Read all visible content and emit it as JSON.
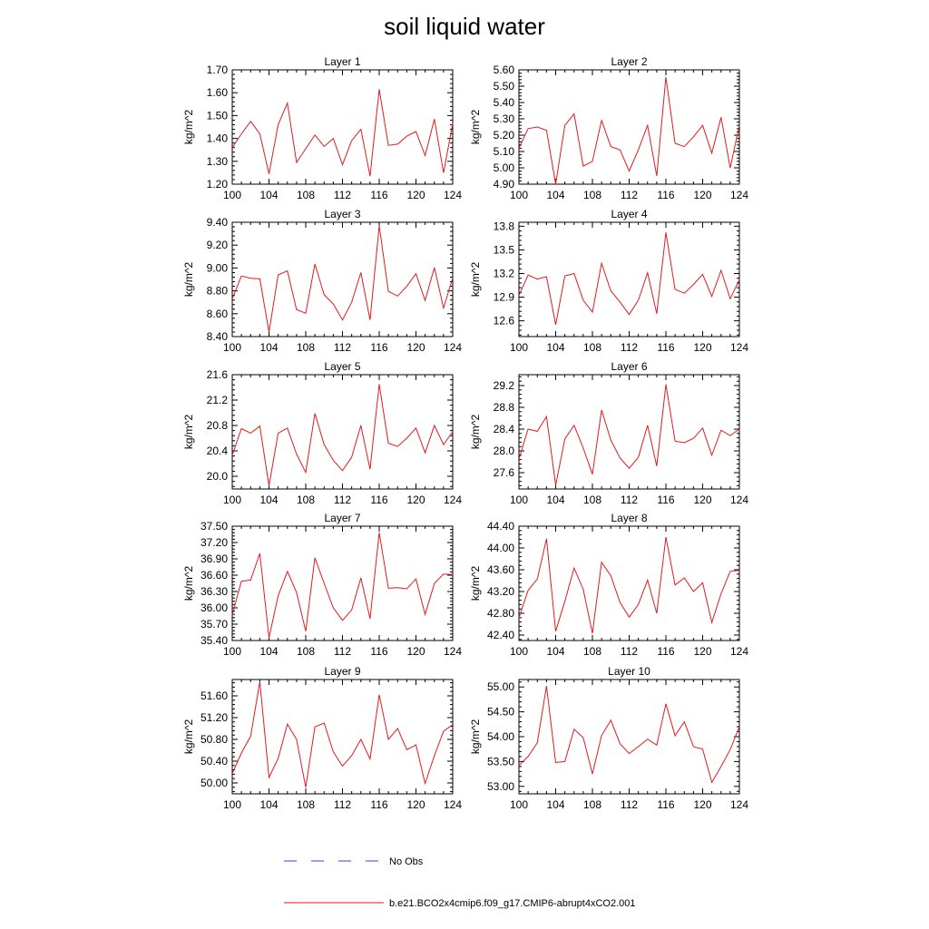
{
  "figure": {
    "title": "soil liquid water",
    "legend": [
      {
        "label": "No Obs",
        "color": "#3b3bd6",
        "style": "dashed"
      },
      {
        "label": "b.e21.BCO2x4cmip6.f09_g17.CMIP6-abrupt4xCO2.001",
        "color": "#e31a1c",
        "style": "solid"
      }
    ]
  },
  "chart_data": [
    {
      "type": "line",
      "title": "Layer 1",
      "ylabel": "kg/m^2",
      "xlim": [
        100,
        124
      ],
      "ylim": [
        1.2,
        1.7
      ],
      "xticks": [
        100,
        104,
        108,
        112,
        116,
        120,
        124
      ],
      "yticks": [
        "1.20",
        "1.30",
        "1.40",
        "1.50",
        "1.60",
        "1.70"
      ],
      "x": [
        100,
        101,
        102,
        103,
        104,
        105,
        106,
        107,
        108,
        109,
        110,
        111,
        112,
        113,
        114,
        115,
        116,
        117,
        118,
        119,
        120,
        121,
        122,
        123,
        124
      ],
      "series": [
        {
          "color": "#e31a1c",
          "values": [
            1.36,
            1.42,
            1.475,
            1.42,
            1.245,
            1.46,
            1.555,
            1.295,
            1.355,
            1.415,
            1.365,
            1.4,
            1.285,
            1.39,
            1.44,
            1.235,
            1.615,
            1.37,
            1.375,
            1.41,
            1.43,
            1.325,
            1.485,
            1.25,
            1.465
          ]
        }
      ]
    },
    {
      "type": "line",
      "title": "Layer 2",
      "ylabel": "kg/m^2",
      "xlim": [
        100,
        124
      ],
      "ylim": [
        4.9,
        5.6
      ],
      "xticks": [
        100,
        104,
        108,
        112,
        116,
        120,
        124
      ],
      "yticks": [
        "4.90",
        "5.00",
        "5.10",
        "5.20",
        "5.30",
        "5.40",
        "5.50",
        "5.60"
      ],
      "x": [
        100,
        101,
        102,
        103,
        104,
        105,
        106,
        107,
        108,
        109,
        110,
        111,
        112,
        113,
        114,
        115,
        116,
        117,
        118,
        119,
        120,
        121,
        122,
        123,
        124
      ],
      "series": [
        {
          "color": "#e31a1c",
          "values": [
            5.12,
            5.24,
            5.25,
            5.23,
            4.9,
            5.26,
            5.33,
            5.01,
            5.04,
            5.29,
            5.13,
            5.11,
            4.98,
            5.11,
            5.26,
            4.95,
            5.555,
            5.15,
            5.13,
            5.19,
            5.26,
            5.09,
            5.31,
            5.0,
            5.26
          ]
        }
      ]
    },
    {
      "type": "line",
      "title": "Layer 3",
      "ylabel": "kg/m^2",
      "xlim": [
        100,
        124
      ],
      "ylim": [
        8.4,
        9.4
      ],
      "xticks": [
        100,
        104,
        108,
        112,
        116,
        120,
        124
      ],
      "yticks": [
        "8.40",
        "8.60",
        "8.80",
        "9.00",
        "9.20",
        "9.40"
      ],
      "x": [
        100,
        101,
        102,
        103,
        104,
        105,
        106,
        107,
        108,
        109,
        110,
        111,
        112,
        113,
        114,
        115,
        116,
        117,
        118,
        119,
        120,
        121,
        122,
        123,
        124
      ],
      "series": [
        {
          "color": "#e31a1c",
          "values": [
            8.73,
            8.93,
            8.91,
            8.905,
            8.44,
            8.94,
            8.975,
            8.635,
            8.605,
            9.035,
            8.765,
            8.685,
            8.545,
            8.7,
            8.96,
            8.545,
            9.37,
            8.795,
            8.755,
            8.84,
            8.95,
            8.715,
            9.005,
            8.65,
            8.915
          ]
        }
      ]
    },
    {
      "type": "line",
      "title": "Layer 4",
      "ylabel": "kg/m^2",
      "xlim": [
        100,
        124
      ],
      "ylim": [
        12.4,
        13.85
      ],
      "xticks": [
        100,
        104,
        108,
        112,
        116,
        120,
        124
      ],
      "yticks": [
        "12.6",
        "12.9",
        "13.2",
        "13.5",
        "13.8"
      ],
      "x": [
        100,
        101,
        102,
        103,
        104,
        105,
        106,
        107,
        108,
        109,
        110,
        111,
        112,
        113,
        114,
        115,
        116,
        117,
        118,
        119,
        120,
        121,
        122,
        123,
        124
      ],
      "series": [
        {
          "color": "#e31a1c",
          "values": [
            12.92,
            13.18,
            13.13,
            13.16,
            12.55,
            13.17,
            13.2,
            12.86,
            12.71,
            13.33,
            12.98,
            12.84,
            12.68,
            12.86,
            13.21,
            12.69,
            13.72,
            13.0,
            12.95,
            13.06,
            13.19,
            12.91,
            13.24,
            12.88,
            13.12
          ]
        }
      ]
    },
    {
      "type": "line",
      "title": "Layer 5",
      "ylabel": "kg/m^2",
      "xlim": [
        100,
        124
      ],
      "ylim": [
        19.8,
        21.6
      ],
      "xticks": [
        100,
        104,
        108,
        112,
        116,
        120,
        124
      ],
      "yticks": [
        "20.0",
        "20.4",
        "20.8",
        "21.2",
        "21.6"
      ],
      "x": [
        100,
        101,
        102,
        103,
        104,
        105,
        106,
        107,
        108,
        109,
        110,
        111,
        112,
        113,
        114,
        115,
        116,
        117,
        118,
        119,
        120,
        121,
        122,
        123,
        124
      ],
      "series": [
        {
          "color": "#e31a1c",
          "values": [
            20.33,
            20.75,
            20.68,
            20.79,
            19.85,
            20.68,
            20.76,
            20.35,
            20.06,
            20.99,
            20.5,
            20.25,
            20.09,
            20.3,
            20.8,
            20.11,
            21.45,
            20.52,
            20.47,
            20.6,
            20.76,
            20.37,
            20.8,
            20.5,
            20.7
          ]
        }
      ]
    },
    {
      "type": "line",
      "title": "Layer 6",
      "ylabel": "kg/m^2",
      "xlim": [
        100,
        124
      ],
      "ylim": [
        27.3,
        29.4
      ],
      "xticks": [
        100,
        104,
        108,
        112,
        116,
        120,
        124
      ],
      "yticks": [
        "27.6",
        "28.0",
        "28.4",
        "28.8",
        "29.2"
      ],
      "x": [
        100,
        101,
        102,
        103,
        104,
        105,
        106,
        107,
        108,
        109,
        110,
        111,
        112,
        113,
        114,
        115,
        116,
        117,
        118,
        119,
        120,
        121,
        122,
        123,
        124
      ],
      "series": [
        {
          "color": "#e31a1c",
          "values": [
            27.85,
            28.4,
            28.36,
            28.63,
            27.37,
            28.22,
            28.47,
            28.05,
            27.57,
            28.75,
            28.2,
            27.87,
            27.68,
            27.88,
            28.47,
            27.72,
            29.22,
            28.18,
            28.15,
            28.23,
            28.42,
            27.92,
            28.38,
            28.28,
            28.4
          ]
        }
      ]
    },
    {
      "type": "line",
      "title": "Layer 7",
      "ylabel": "kg/m^2",
      "xlim": [
        100,
        124
      ],
      "ylim": [
        35.4,
        37.5
      ],
      "xticks": [
        100,
        104,
        108,
        112,
        116,
        120,
        124
      ],
      "yticks": [
        "35.40",
        "35.70",
        "36.00",
        "36.30",
        "36.60",
        "36.90",
        "37.20",
        "37.50"
      ],
      "x": [
        100,
        101,
        102,
        103,
        104,
        105,
        106,
        107,
        108,
        109,
        110,
        111,
        112,
        113,
        114,
        115,
        116,
        117,
        118,
        119,
        120,
        121,
        122,
        123,
        124
      ],
      "series": [
        {
          "color": "#e31a1c",
          "values": [
            35.87,
            36.49,
            36.51,
            37.0,
            35.45,
            36.22,
            36.67,
            36.28,
            35.57,
            36.92,
            36.45,
            36.0,
            35.77,
            35.96,
            36.55,
            35.8,
            37.38,
            36.36,
            36.37,
            36.35,
            36.53,
            35.88,
            36.45,
            36.62,
            36.61
          ]
        }
      ]
    },
    {
      "type": "line",
      "title": "Layer 8",
      "ylabel": "kg/m^2",
      "xlim": [
        100,
        124
      ],
      "ylim": [
        42.3,
        44.4
      ],
      "xticks": [
        100,
        104,
        108,
        112,
        116,
        120,
        124
      ],
      "yticks": [
        "42.40",
        "42.80",
        "43.20",
        "43.60",
        "44.00",
        "44.40"
      ],
      "x": [
        100,
        101,
        102,
        103,
        104,
        105,
        106,
        107,
        108,
        109,
        110,
        111,
        112,
        113,
        114,
        115,
        116,
        117,
        118,
        119,
        120,
        121,
        122,
        123,
        124
      ],
      "series": [
        {
          "color": "#e31a1c",
          "values": [
            42.72,
            43.22,
            43.43,
            44.17,
            42.47,
            43.02,
            43.63,
            43.24,
            42.43,
            43.74,
            43.49,
            43.0,
            42.73,
            42.96,
            43.41,
            42.8,
            44.2,
            43.32,
            43.45,
            43.2,
            43.36,
            42.63,
            43.16,
            43.57,
            43.59
          ]
        }
      ]
    },
    {
      "type": "line",
      "title": "Layer 9",
      "ylabel": "kg/m^2",
      "xlim": [
        100,
        124
      ],
      "ylim": [
        49.8,
        51.9
      ],
      "xticks": [
        100,
        104,
        108,
        112,
        116,
        120,
        124
      ],
      "yticks": [
        "50.00",
        "50.40",
        "50.80",
        "51.20",
        "51.60"
      ],
      "x": [
        100,
        101,
        102,
        103,
        104,
        105,
        106,
        107,
        108,
        109,
        110,
        111,
        112,
        113,
        114,
        115,
        116,
        117,
        118,
        119,
        120,
        121,
        122,
        123,
        124
      ],
      "series": [
        {
          "color": "#e31a1c",
          "values": [
            50.17,
            50.55,
            50.86,
            51.86,
            50.1,
            50.45,
            51.08,
            50.8,
            49.92,
            51.03,
            51.1,
            50.57,
            50.31,
            50.5,
            50.8,
            50.44,
            51.62,
            50.8,
            51.0,
            50.61,
            50.7,
            49.99,
            50.5,
            50.95,
            51.07
          ]
        }
      ]
    },
    {
      "type": "line",
      "title": "Layer 10",
      "ylabel": "kg/m^2",
      "xlim": [
        100,
        124
      ],
      "ylim": [
        52.85,
        55.15
      ],
      "xticks": [
        100,
        104,
        108,
        112,
        116,
        120,
        124
      ],
      "yticks": [
        "53.00",
        "53.50",
        "54.00",
        "54.50",
        "55.00"
      ],
      "x": [
        100,
        101,
        102,
        103,
        104,
        105,
        106,
        107,
        108,
        109,
        110,
        111,
        112,
        113,
        114,
        115,
        116,
        117,
        118,
        119,
        120,
        121,
        122,
        123,
        124
      ],
      "series": [
        {
          "color": "#e31a1c",
          "values": [
            53.42,
            53.6,
            53.88,
            55.02,
            53.48,
            53.5,
            54.15,
            53.98,
            53.25,
            54.02,
            54.33,
            53.86,
            53.66,
            53.8,
            53.95,
            53.83,
            54.66,
            54.02,
            54.3,
            53.8,
            53.75,
            53.08,
            53.4,
            53.74,
            54.2
          ]
        }
      ]
    }
  ]
}
